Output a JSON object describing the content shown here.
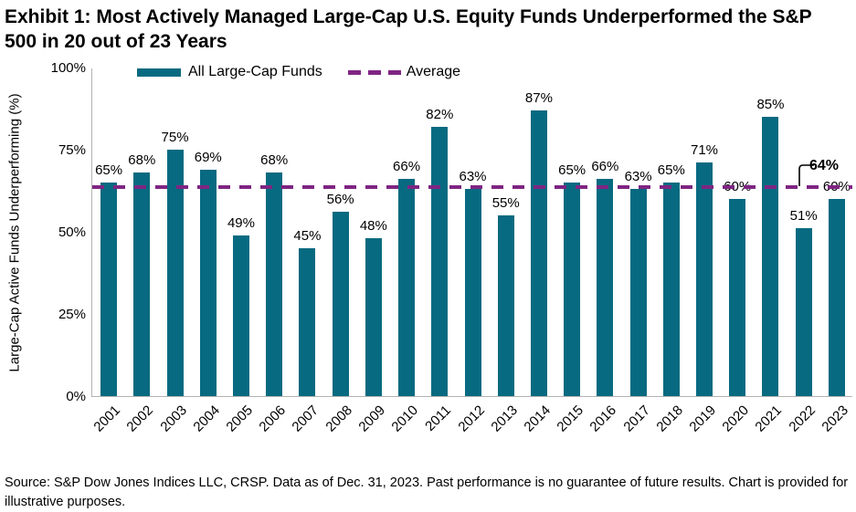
{
  "title": "Exhibit 1: Most Actively Managed Large-Cap U.S. Equity Funds Underperformed the S&P 500 in 20 out of 23 Years",
  "legend": {
    "series_label": "All Large-Cap Funds",
    "average_label": "Average"
  },
  "y_axis": {
    "title": "Large-Cap Active Funds Underperforming (%)",
    "ticks": [
      "100%",
      "75%",
      "50%",
      "25%",
      "0%"
    ]
  },
  "footer": "Source: S&P Dow Jones Indices LLC, CRSP. Data as of Dec. 31, 2023. Past performance is no guarantee of future results. Chart is provided for illustrative purposes.",
  "colors": {
    "bar": "#076a80",
    "average_line": "#7f2583",
    "axis": "#b3b3b3",
    "text": "#000000"
  },
  "chart_data": {
    "type": "bar",
    "title": "Exhibit 1: Most Actively Managed Large-Cap U.S. Equity Funds Underperformed the S&P 500 in 20 out of 23 Years",
    "series_name": "All Large-Cap Funds",
    "categories": [
      "2001",
      "2002",
      "2003",
      "2004",
      "2005",
      "2006",
      "2007",
      "2008",
      "2009",
      "2010",
      "2011",
      "2012",
      "2013",
      "2014",
      "2015",
      "2016",
      "2017",
      "2018",
      "2019",
      "2020",
      "2021",
      "2022",
      "2023"
    ],
    "values": [
      65,
      68,
      75,
      69,
      49,
      68,
      45,
      56,
      48,
      66,
      82,
      63,
      55,
      87,
      65,
      66,
      63,
      65,
      71,
      60,
      85,
      51,
      60
    ],
    "value_labels": [
      "65%",
      "68%",
      "75%",
      "69%",
      "49%",
      "68%",
      "45%",
      "56%",
      "48%",
      "66%",
      "82%",
      "63%",
      "55%",
      "87%",
      "65%",
      "66%",
      "63%",
      "65%",
      "71%",
      "60%",
      "85%",
      "51%",
      "60%"
    ],
    "xlabel": "",
    "ylabel": "Large-Cap Active Funds Underperforming (%)",
    "ylim": [
      0,
      100
    ],
    "grid": false,
    "legend_position": "top",
    "average": 64,
    "average_label": "64%"
  }
}
